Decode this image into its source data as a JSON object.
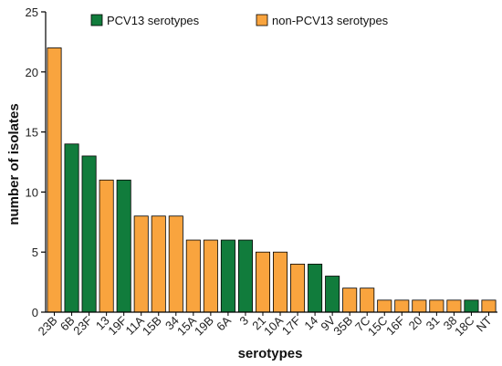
{
  "chart_data": {
    "type": "bar",
    "title": "",
    "xlabel": "serotypes",
    "ylabel": "number of isolates",
    "ylim": [
      0,
      25
    ],
    "yticks": [
      0,
      5,
      10,
      15,
      20,
      25
    ],
    "grid": false,
    "legend_position": "top-center",
    "categories": [
      "23B",
      "6B",
      "23F",
      "13",
      "19F",
      "11A",
      "15B",
      "34",
      "15A",
      "19B",
      "6A",
      "3",
      "21",
      "10A",
      "17F",
      "14",
      "9V",
      "35B",
      "7C",
      "15C",
      "16F",
      "20",
      "31",
      "38",
      "18C",
      "NT"
    ],
    "values": [
      22,
      14,
      13,
      11,
      11,
      8,
      8,
      8,
      6,
      6,
      6,
      6,
      5,
      5,
      4,
      4,
      3,
      2,
      2,
      1,
      1,
      1,
      1,
      1,
      1,
      1
    ],
    "groups": [
      "non",
      "pcv",
      "pcv",
      "non",
      "pcv",
      "non",
      "non",
      "non",
      "non",
      "non",
      "pcv",
      "pcv",
      "non",
      "non",
      "non",
      "pcv",
      "pcv",
      "non",
      "non",
      "non",
      "non",
      "non",
      "non",
      "non",
      "pcv",
      "non"
    ],
    "legend": [
      {
        "key": "pcv",
        "label": "PCV13 serotypes",
        "color": "#117c3c"
      },
      {
        "key": "non",
        "label": "non-PCV13 serotypes",
        "color": "#f9a43e"
      }
    ]
  }
}
